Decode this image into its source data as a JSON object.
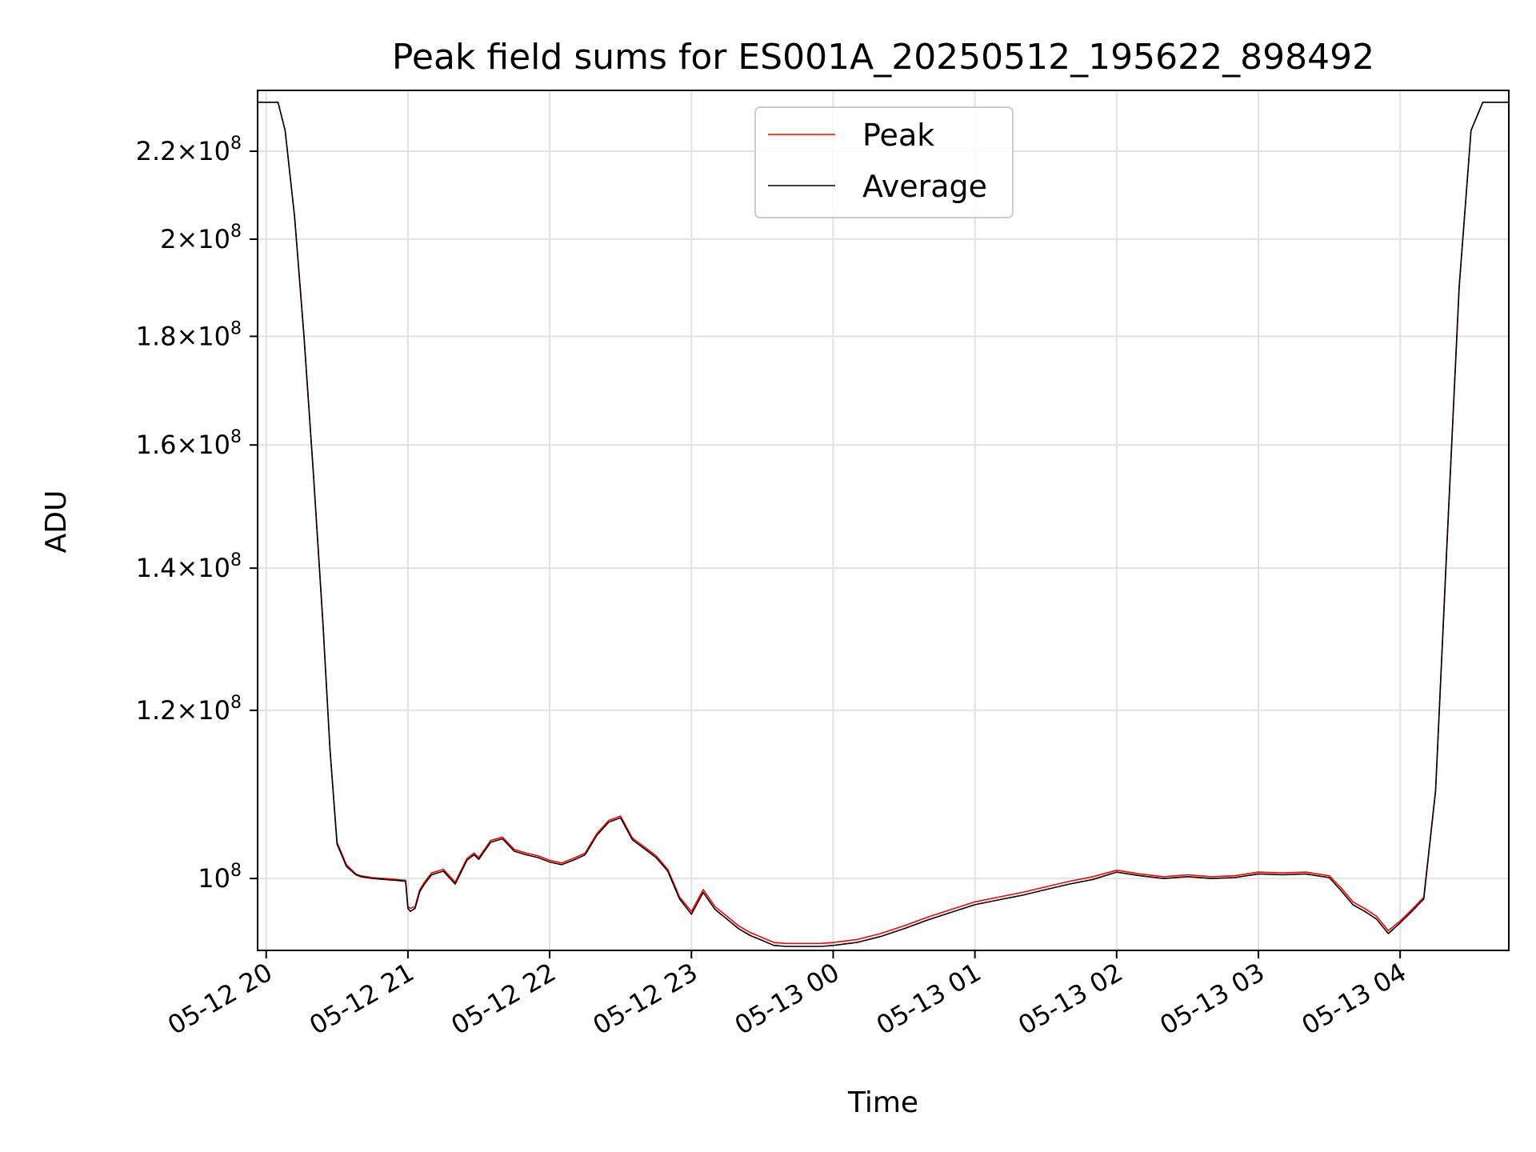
{
  "chart_data": {
    "type": "line",
    "title": "Peak field sums for ES001A_20250512_195622_898492",
    "xlabel": "Time",
    "ylabel": "ADU",
    "y_scale": "log",
    "ylim": [
      92500000,
      235000000
    ],
    "xlim": [
      "2025-05-12 19:56:22",
      "2025-05-13 04:46:00"
    ],
    "grid": true,
    "legend_position": "upper center",
    "x_ticks": [
      "05-12 20",
      "05-12 21",
      "05-12 22",
      "05-12 23",
      "05-13 00",
      "05-13 01",
      "05-13 02",
      "05-13 03",
      "05-13 04"
    ],
    "x_tick_times": [
      "2025-05-12 20:00",
      "2025-05-12 21:00",
      "2025-05-12 22:00",
      "2025-05-12 23:00",
      "2025-05-13 00:00",
      "2025-05-13 01:00",
      "2025-05-13 02:00",
      "2025-05-13 03:00",
      "2025-05-13 04:00"
    ],
    "y_ticks": [
      {
        "value": 100000000,
        "mantissa": "",
        "exponent": "8"
      },
      {
        "value": 120000000,
        "mantissa": "1.2",
        "exponent": "8"
      },
      {
        "value": 140000000,
        "mantissa": "1.4",
        "exponent": "8"
      },
      {
        "value": 160000000,
        "mantissa": "1.6",
        "exponent": "8"
      },
      {
        "value": 180000000,
        "mantissa": "1.8",
        "exponent": "8"
      },
      {
        "value": 200000000,
        "mantissa": "2",
        "exponent": "8"
      },
      {
        "value": 220000000,
        "mantissa": "2.2",
        "exponent": "8"
      }
    ],
    "series": [
      {
        "name": "Peak",
        "color": "#ff0000",
        "x": [
          "2025-05-12 19:56:22",
          "2025-05-12 20:05",
          "2025-05-12 20:08",
          "2025-05-12 20:12",
          "2025-05-12 20:16",
          "2025-05-12 20:20",
          "2025-05-12 20:24",
          "2025-05-12 20:27",
          "2025-05-12 20:30",
          "2025-05-12 20:34",
          "2025-05-12 20:38",
          "2025-05-12 20:40",
          "2025-05-12 20:45",
          "2025-05-12 20:50",
          "2025-05-12 20:55",
          "2025-05-12 20:59",
          "2025-05-12 21:00",
          "2025-05-12 21:01",
          "2025-05-12 21:03",
          "2025-05-12 21:05",
          "2025-05-12 21:07",
          "2025-05-12 21:10",
          "2025-05-12 21:15",
          "2025-05-12 21:20",
          "2025-05-12 21:25",
          "2025-05-12 21:28",
          "2025-05-12 21:30",
          "2025-05-12 21:35",
          "2025-05-12 21:40",
          "2025-05-12 21:45",
          "2025-05-12 21:50",
          "2025-05-12 21:55",
          "2025-05-12 22:00",
          "2025-05-12 22:05",
          "2025-05-12 22:10",
          "2025-05-12 22:15",
          "2025-05-12 22:20",
          "2025-05-12 22:25",
          "2025-05-12 22:30",
          "2025-05-12 22:35",
          "2025-05-12 22:40",
          "2025-05-12 22:45",
          "2025-05-12 22:50",
          "2025-05-12 22:55",
          "2025-05-12 23:00",
          "2025-05-12 23:05",
          "2025-05-12 23:10",
          "2025-05-12 23:15",
          "2025-05-12 23:20",
          "2025-05-12 23:25",
          "2025-05-12 23:30",
          "2025-05-12 23:35",
          "2025-05-12 23:40",
          "2025-05-12 23:45",
          "2025-05-12 23:50",
          "2025-05-12 23:55",
          "2025-05-13 00:00",
          "2025-05-13 00:10",
          "2025-05-13 00:20",
          "2025-05-13 00:30",
          "2025-05-13 00:40",
          "2025-05-13 00:50",
          "2025-05-13 01:00",
          "2025-05-13 01:10",
          "2025-05-13 01:20",
          "2025-05-13 01:30",
          "2025-05-13 01:40",
          "2025-05-13 01:50",
          "2025-05-13 02:00",
          "2025-05-13 02:10",
          "2025-05-13 02:20",
          "2025-05-13 02:30",
          "2025-05-13 02:40",
          "2025-05-13 02:50",
          "2025-05-13 03:00",
          "2025-05-13 03:10",
          "2025-05-13 03:20",
          "2025-05-13 03:30",
          "2025-05-13 03:35",
          "2025-05-13 03:40",
          "2025-05-13 03:45",
          "2025-05-13 03:50",
          "2025-05-13 03:55",
          "2025-05-13 04:00",
          "2025-05-13 04:05",
          "2025-05-13 04:10",
          "2025-05-13 04:15",
          "2025-05-13 04:20",
          "2025-05-13 04:25",
          "2025-05-13 04:30",
          "2025-05-13 04:35",
          "2025-05-13 04:40",
          "2025-05-13 04:46"
        ],
        "values": [
          232000000,
          232000000,
          225000000,
          205000000,
          180000000,
          155000000,
          132000000,
          115000000,
          104000000,
          101500000,
          100500000,
          100300000,
          100100000,
          100000000,
          99900000,
          99800000,
          97000000,
          96800000,
          97000000,
          98800000,
          99600000,
          100600000,
          101000000,
          99600000,
          102200000,
          102800000,
          102300000,
          104200000,
          104600000,
          103200000,
          102800000,
          102500000,
          102000000,
          101700000,
          102200000,
          102800000,
          105000000,
          106500000,
          107000000,
          104500000,
          103500000,
          102500000,
          101000000,
          98000000,
          96500000,
          98800000,
          97000000,
          96000000,
          95000000,
          94300000,
          93800000,
          93300000,
          93200000,
          93200000,
          93200000,
          93200000,
          93300000,
          93600000,
          94200000,
          95000000,
          95900000,
          96700000,
          97500000,
          98000000,
          98500000,
          99100000,
          99700000,
          100200000,
          100900000,
          100500000,
          100200000,
          100400000,
          100200000,
          100300000,
          100700000,
          100600000,
          100700000,
          100300000,
          99000000,
          97500000,
          96800000,
          96000000,
          94500000,
          95500000,
          96700000,
          98000000,
          110000000,
          145000000,
          190000000,
          225000000,
          232000000,
          232000000,
          232000000
        ]
      },
      {
        "name": "Average",
        "color": "#000000",
        "x": [
          "2025-05-12 19:56:22",
          "2025-05-12 20:05",
          "2025-05-12 20:08",
          "2025-05-12 20:12",
          "2025-05-12 20:16",
          "2025-05-12 20:20",
          "2025-05-12 20:24",
          "2025-05-12 20:27",
          "2025-05-12 20:30",
          "2025-05-12 20:34",
          "2025-05-12 20:38",
          "2025-05-12 20:40",
          "2025-05-12 20:45",
          "2025-05-12 20:50",
          "2025-05-12 20:55",
          "2025-05-12 20:59",
          "2025-05-12 21:00",
          "2025-05-12 21:01",
          "2025-05-12 21:03",
          "2025-05-12 21:05",
          "2025-05-12 21:07",
          "2025-05-12 21:10",
          "2025-05-12 21:15",
          "2025-05-12 21:20",
          "2025-05-12 21:25",
          "2025-05-12 21:28",
          "2025-05-12 21:30",
          "2025-05-12 21:35",
          "2025-05-12 21:40",
          "2025-05-12 21:45",
          "2025-05-12 21:50",
          "2025-05-12 21:55",
          "2025-05-12 22:00",
          "2025-05-12 22:05",
          "2025-05-12 22:10",
          "2025-05-12 22:15",
          "2025-05-12 22:20",
          "2025-05-12 22:25",
          "2025-05-12 22:30",
          "2025-05-12 22:35",
          "2025-05-12 22:40",
          "2025-05-12 22:45",
          "2025-05-12 22:50",
          "2025-05-12 22:55",
          "2025-05-12 23:00",
          "2025-05-12 23:05",
          "2025-05-12 23:10",
          "2025-05-12 23:15",
          "2025-05-12 23:20",
          "2025-05-12 23:25",
          "2025-05-12 23:30",
          "2025-05-12 23:35",
          "2025-05-12 23:40",
          "2025-05-12 23:45",
          "2025-05-12 23:50",
          "2025-05-12 23:55",
          "2025-05-13 00:00",
          "2025-05-13 00:10",
          "2025-05-13 00:20",
          "2025-05-13 00:30",
          "2025-05-13 00:40",
          "2025-05-13 00:50",
          "2025-05-13 01:00",
          "2025-05-13 01:10",
          "2025-05-13 01:20",
          "2025-05-13 01:30",
          "2025-05-13 01:40",
          "2025-05-13 01:50",
          "2025-05-13 02:00",
          "2025-05-13 02:10",
          "2025-05-13 02:20",
          "2025-05-13 02:30",
          "2025-05-13 02:40",
          "2025-05-13 02:50",
          "2025-05-13 03:00",
          "2025-05-13 03:10",
          "2025-05-13 03:20",
          "2025-05-13 03:30",
          "2025-05-13 03:35",
          "2025-05-13 03:40",
          "2025-05-13 03:45",
          "2025-05-13 03:50",
          "2025-05-13 03:55",
          "2025-05-13 04:00",
          "2025-05-13 04:05",
          "2025-05-13 04:10",
          "2025-05-13 04:15",
          "2025-05-13 04:20",
          "2025-05-13 04:25",
          "2025-05-13 04:30",
          "2025-05-13 04:35",
          "2025-05-13 04:40",
          "2025-05-13 04:46"
        ],
        "values": [
          232000000,
          232000000,
          225000000,
          205000000,
          180000000,
          155000000,
          132000000,
          115000000,
          103800000,
          101300000,
          100400000,
          100200000,
          100000000,
          99900000,
          99800000,
          99700000,
          96800000,
          96500000,
          96800000,
          98600000,
          99400000,
          100400000,
          100800000,
          99400000,
          102000000,
          102600000,
          102100000,
          104000000,
          104400000,
          103000000,
          102600000,
          102300000,
          101800000,
          101500000,
          102000000,
          102600000,
          104800000,
          106300000,
          106800000,
          104300000,
          103300000,
          102300000,
          100800000,
          97800000,
          96200000,
          98500000,
          96700000,
          95700000,
          94700000,
          94000000,
          93500000,
          93000000,
          92900000,
          92900000,
          92900000,
          92900000,
          93000000,
          93300000,
          93900000,
          94700000,
          95600000,
          96400000,
          97200000,
          97700000,
          98200000,
          98800000,
          99400000,
          99900000,
          100700000,
          100300000,
          100000000,
          100200000,
          100000000,
          100100000,
          100500000,
          100400000,
          100500000,
          100100000,
          98700000,
          97200000,
          96500000,
          95700000,
          94200000,
          95300000,
          96500000,
          97800000,
          110000000,
          145000000,
          190000000,
          225000000,
          232000000,
          232000000,
          232000000
        ]
      }
    ]
  }
}
